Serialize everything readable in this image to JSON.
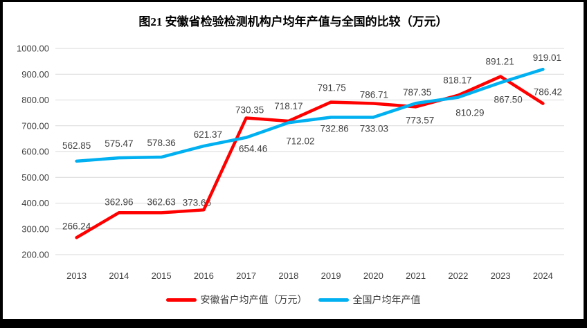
{
  "title": "图21 安徽省检验检测机构户均年产值与全国的比较（万元）",
  "colors": {
    "anhui_series": "#FF0000",
    "national_series": "#00B0F0",
    "grid": "#D9D9D9",
    "axis_text": "#404040",
    "data_label_text": "#404040",
    "title_text": "#000000",
    "frame": "#000000",
    "background": "#FFFFFF"
  },
  "chart_data": {
    "type": "line",
    "title": "图21 安徽省检验检测机构户均年产值与全国的比较（万元）",
    "categories": [
      "2013",
      "2014",
      "2015",
      "2016",
      "2017",
      "2018",
      "2019",
      "2020",
      "2021",
      "2022",
      "2023",
      "2024"
    ],
    "series": [
      {
        "name": "安徽省户均产值（万元）",
        "color": "#FF0000",
        "values": [
          266.24,
          362.96,
          362.63,
          373.66,
          730.35,
          718.17,
          791.75,
          786.71,
          773.57,
          818.17,
          891.21,
          786.42
        ],
        "labels": [
          "266.24",
          "362.96",
          "362.63",
          "373.66",
          "730.35",
          "718.17",
          "791.75",
          "786.71",
          "773.57",
          "818.17",
          "891.21",
          "786.42"
        ],
        "label_side": [
          "above",
          "above",
          "above",
          "above",
          "above",
          "above",
          "above",
          "above",
          "below",
          "above",
          "above",
          "above"
        ],
        "label_dx": [
          0,
          0,
          0,
          -10,
          5,
          0,
          1,
          1,
          6,
          -1,
          -1,
          7
        ],
        "label_dy": [
          -12,
          -11,
          -11,
          -6,
          -7,
          -17,
          -16,
          -8,
          24,
          -17,
          -17,
          -12
        ]
      },
      {
        "name": "全国户均年产值",
        "color": "#00B0F0",
        "values": [
          562.85,
          575.47,
          578.36,
          621.37,
          654.46,
          712.02,
          732.86,
          733.03,
          787.35,
          810.29,
          867.5,
          919.01
        ],
        "labels": [
          "562.85",
          "575.47",
          "578.36",
          "621.37",
          "654.46",
          "712.02",
          "732.86",
          "733.03",
          "787.35",
          "810.29",
          "867.50",
          "919.01"
        ],
        "label_side": [
          "above",
          "above",
          "above",
          "above",
          "below",
          "below",
          "below",
          "below",
          "above",
          "below",
          "below",
          "above"
        ],
        "label_dx": [
          0,
          0,
          0,
          6,
          10,
          17,
          5,
          1,
          2,
          17,
          11,
          6
        ],
        "label_dy": [
          -18,
          -16,
          -16,
          -12,
          21,
          31,
          21,
          21,
          -11,
          27,
          29,
          -12
        ]
      }
    ],
    "ylim": [
      200,
      1000
    ],
    "ytick_step": 100,
    "yticks": [
      "1000.00",
      "900.00",
      "800.00",
      "700.00",
      "600.00",
      "500.00",
      "400.00",
      "300.00",
      "200.00"
    ],
    "xlabel": "",
    "ylabel": "",
    "grid": true,
    "legend_position": "bottom"
  },
  "legend": {
    "items": [
      {
        "label": "安徽省户均产值（万元）",
        "color": "#FF0000"
      },
      {
        "label": "全国户均年产值",
        "color": "#00B0F0"
      }
    ]
  }
}
